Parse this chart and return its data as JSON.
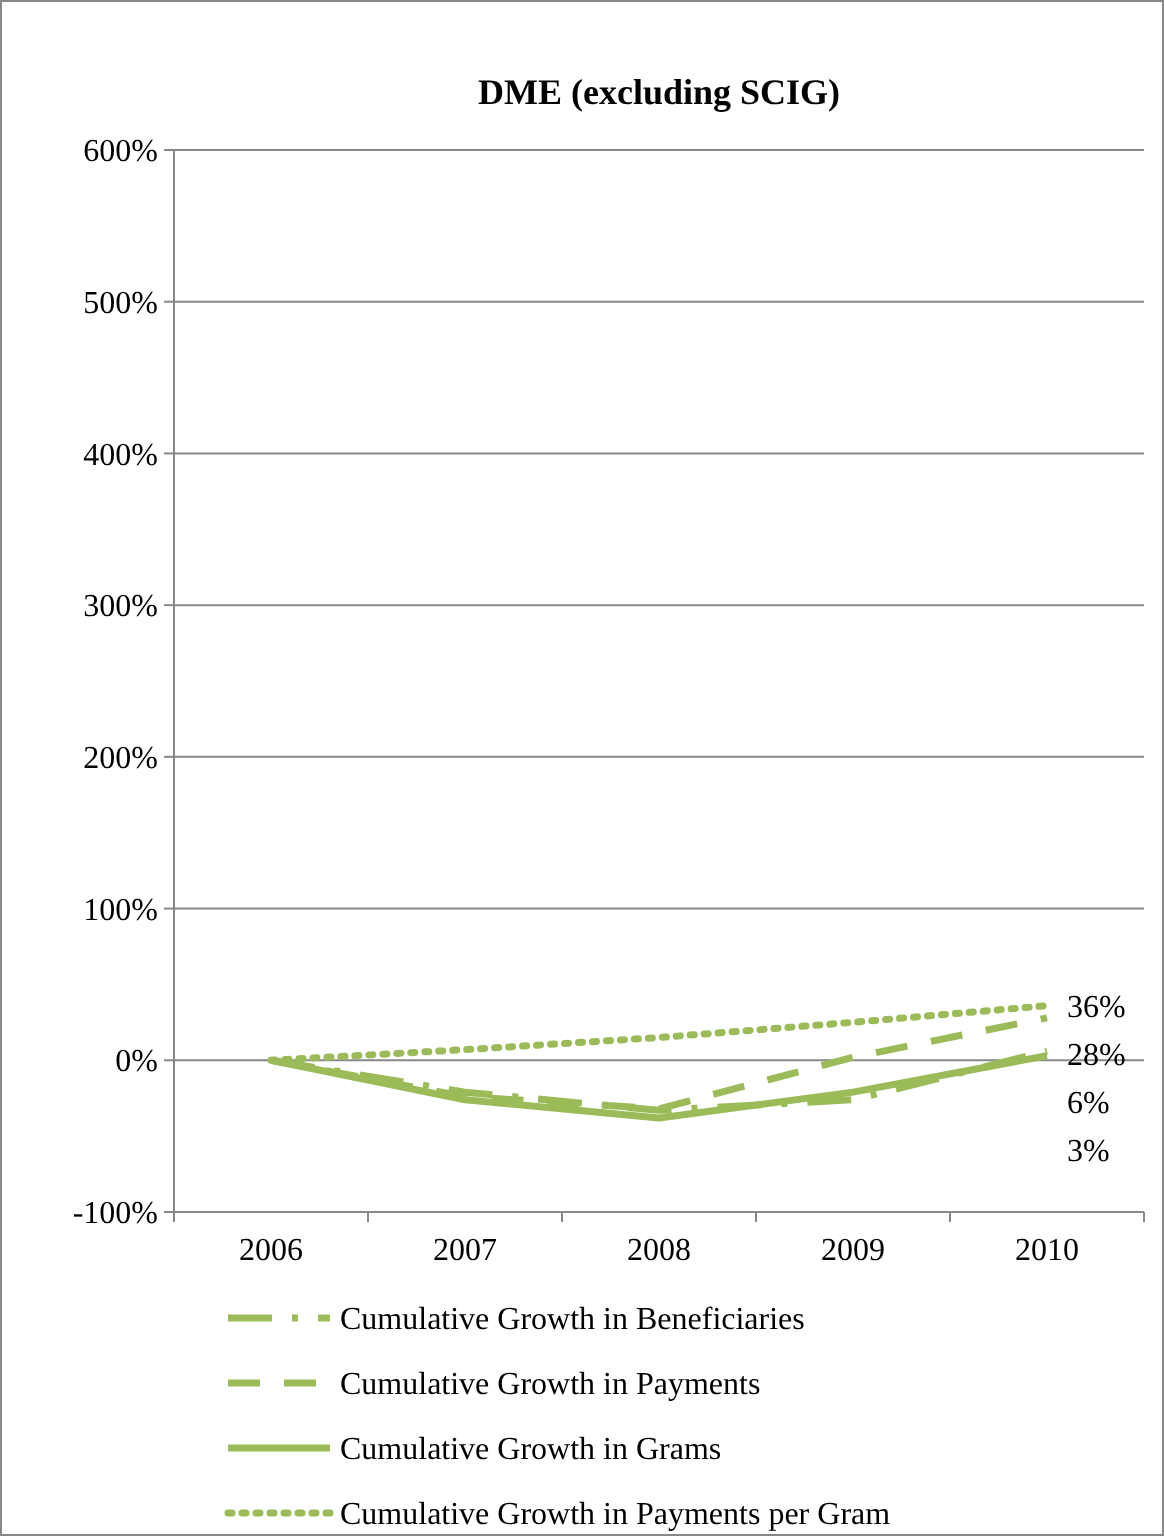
{
  "chart_data": {
    "type": "line",
    "title": "DME (excluding SCIG)",
    "categories": [
      "2006",
      "2007",
      "2008",
      "2009",
      "2010"
    ],
    "ylim": [
      -100,
      600
    ],
    "yticks": [
      {
        "value": -100,
        "label": "-100%"
      },
      {
        "value": 0,
        "label": "0%"
      },
      {
        "value": 100,
        "label": "100%"
      },
      {
        "value": 200,
        "label": "200%"
      },
      {
        "value": 300,
        "label": "300%"
      },
      {
        "value": 400,
        "label": "400%"
      },
      {
        "value": 500,
        "label": "500%"
      },
      {
        "value": 600,
        "label": "600%"
      }
    ],
    "grid": "y",
    "legend": "bottom",
    "marker": "none",
    "series": [
      {
        "name": "Cumulative Growth in Beneficiaries",
        "color": "#9bbb59",
        "line_style": "dashed",
        "values": [
          0,
          -21,
          -33,
          -26,
          6
        ],
        "value_labels": [
          null,
          null,
          null,
          null,
          "6%"
        ]
      },
      {
        "name": "Cumulative Growth in Payments",
        "color": "#9bbb59",
        "line_style": "dashed",
        "values": [
          0,
          -24,
          -32,
          2,
          28
        ],
        "value_labels": [
          null,
          null,
          null,
          null,
          "28%"
        ]
      },
      {
        "name": "Cumulative Growth in Grams",
        "color": "#9bbb59",
        "line_style": "solid",
        "values": [
          0,
          -26,
          -38,
          -21,
          3
        ],
        "value_labels": [
          null,
          null,
          null,
          null,
          "3%"
        ]
      },
      {
        "name": "Cumulative Growth in Payments per Gram",
        "color": "#9bbb59",
        "line_style": "dotted",
        "values": [
          0,
          7,
          15,
          25,
          36
        ],
        "value_labels": [
          null,
          null,
          null,
          null,
          "36%"
        ]
      }
    ]
  }
}
